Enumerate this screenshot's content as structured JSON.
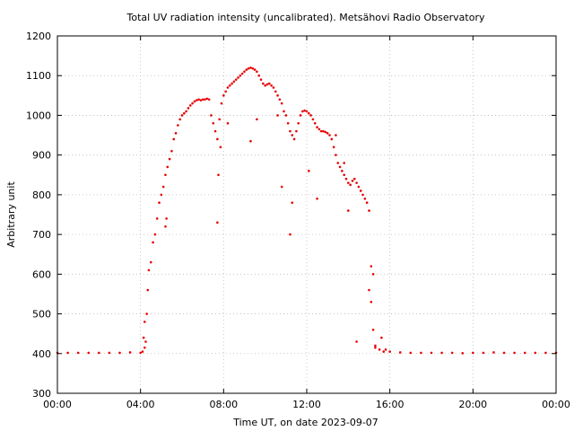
{
  "chart_data": {
    "type": "scatter",
    "title": "Total UV radiation intensity (uncalibrated). Metsähovi Radio Observatory",
    "xlabel": "Time UT, on date 2023-09-07",
    "ylabel": "Arbitrary unit",
    "xlim": [
      0,
      24
    ],
    "ylim": [
      300,
      1200
    ],
    "x_tick_values": [
      0,
      4,
      8,
      12,
      16,
      20,
      24
    ],
    "x_tick_labels": [
      "00:00",
      "04:00",
      "08:00",
      "12:00",
      "16:00",
      "20:00",
      "00:00"
    ],
    "y_tick_values": [
      300,
      400,
      500,
      600,
      700,
      800,
      900,
      1000,
      1100,
      1200
    ],
    "y_tick_labels": [
      "300",
      "400",
      "500",
      "600",
      "700",
      "800",
      "900",
      "1000",
      "1100",
      "1200"
    ],
    "grid": true,
    "colors": {
      "series": "#e60000",
      "grid": "#bbbbbb",
      "axes": "#000000"
    },
    "series": [
      {
        "x_unit": "hours UT",
        "x": [
          0.0,
          0.5,
          1.0,
          1.5,
          2.0,
          2.5,
          3.0,
          3.5,
          4.0,
          4.1,
          4.2,
          4.25,
          4.3,
          4.35,
          4.4,
          4.5,
          4.6,
          4.7,
          4.8,
          4.9,
          5.0,
          5.1,
          5.2,
          5.3,
          5.4,
          5.5,
          5.6,
          5.7,
          5.8,
          5.9,
          6.0,
          6.1,
          6.2,
          6.3,
          6.4,
          6.5,
          6.6,
          6.7,
          6.8,
          6.9,
          7.0,
          7.1,
          7.2,
          7.3,
          7.4,
          7.5,
          7.6,
          7.7,
          7.8,
          7.9,
          8.0,
          8.1,
          8.2,
          8.3,
          8.4,
          8.5,
          8.6,
          8.7,
          8.8,
          8.9,
          9.0,
          9.1,
          9.2,
          9.3,
          9.4,
          9.5,
          9.6,
          9.7,
          9.8,
          9.9,
          10.0,
          10.1,
          10.2,
          10.3,
          10.4,
          10.5,
          10.6,
          10.7,
          10.8,
          10.9,
          11.0,
          11.1,
          11.2,
          11.3,
          11.4,
          11.5,
          11.6,
          11.7,
          11.8,
          11.9,
          12.0,
          12.1,
          12.2,
          12.3,
          12.4,
          12.5,
          12.6,
          12.7,
          12.8,
          12.9,
          13.0,
          13.1,
          13.2,
          13.3,
          13.4,
          13.5,
          13.6,
          13.7,
          13.8,
          13.9,
          14.0,
          14.1,
          14.2,
          14.3,
          14.4,
          14.5,
          14.6,
          14.7,
          14.8,
          14.9,
          15.0,
          15.1,
          15.2,
          15.3,
          15.5,
          15.7,
          16.0,
          16.5,
          17.0,
          17.5,
          18.0,
          18.5,
          19.0,
          19.5,
          20.0,
          20.5,
          21.0,
          21.5,
          22.0,
          22.5,
          23.0,
          23.5,
          24.0,
          4.15,
          4.2,
          5.2,
          5.25,
          7.7,
          7.75,
          7.85,
          8.2,
          9.3,
          9.6,
          10.6,
          10.8,
          11.2,
          11.3,
          12.1,
          12.5,
          13.4,
          13.8,
          14.0,
          14.4,
          15.0,
          15.1,
          15.2,
          15.3,
          15.6,
          15.8
        ],
        "y": [
          402,
          402,
          402,
          402,
          402,
          402,
          402,
          403,
          402,
          405,
          415,
          430,
          500,
          560,
          610,
          630,
          680,
          700,
          740,
          780,
          800,
          820,
          850,
          870,
          890,
          910,
          940,
          955,
          975,
          990,
          1000,
          1005,
          1010,
          1018,
          1025,
          1030,
          1035,
          1038,
          1040,
          1038,
          1040,
          1040,
          1042,
          1040,
          1000,
          980,
          960,
          940,
          990,
          1030,
          1050,
          1060,
          1070,
          1075,
          1080,
          1085,
          1090,
          1095,
          1100,
          1105,
          1110,
          1115,
          1118,
          1120,
          1118,
          1115,
          1110,
          1100,
          1090,
          1080,
          1075,
          1078,
          1080,
          1075,
          1070,
          1060,
          1050,
          1040,
          1030,
          1010,
          1000,
          980,
          960,
          950,
          940,
          960,
          980,
          1000,
          1010,
          1012,
          1010,
          1005,
          1000,
          990,
          980,
          970,
          965,
          960,
          960,
          958,
          955,
          950,
          940,
          920,
          900,
          880,
          870,
          860,
          850,
          840,
          830,
          825,
          835,
          840,
          830,
          820,
          810,
          800,
          790,
          780,
          760,
          620,
          600,
          420,
          410,
          405,
          405,
          403,
          402,
          402,
          402,
          402,
          402,
          401,
          402,
          402,
          403,
          402,
          402,
          402,
          402,
          402,
          402,
          440,
          480,
          720,
          740,
          730,
          850,
          920,
          980,
          935,
          990,
          1000,
          820,
          700,
          780,
          860,
          790,
          950,
          880,
          760,
          430,
          560,
          530,
          460,
          415,
          440,
          410
        ]
      }
    ]
  }
}
